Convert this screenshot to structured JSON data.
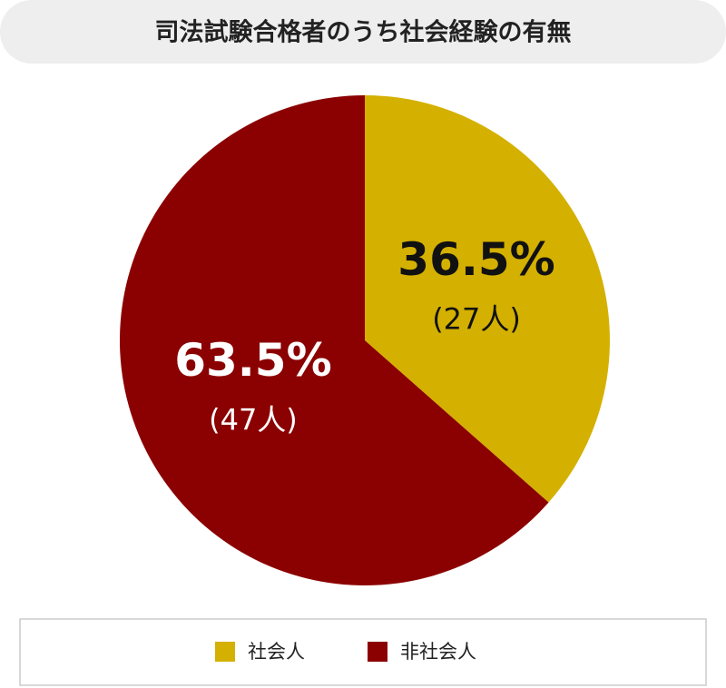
{
  "chart_data": {
    "type": "pie",
    "title": "司法試験合格者のうち社会経験の有無",
    "categories": [
      "社会人",
      "非社会人"
    ],
    "values": [
      36.5,
      63.5
    ],
    "value_labels": [
      "36.5%",
      "63.5%"
    ],
    "count_labels": [
      "(27人)",
      "(47人)"
    ],
    "colors": [
      "#d4b000",
      "#8b0000"
    ],
    "label_colors": [
      "#111111",
      "#ffffff"
    ],
    "legend": "bottom"
  }
}
